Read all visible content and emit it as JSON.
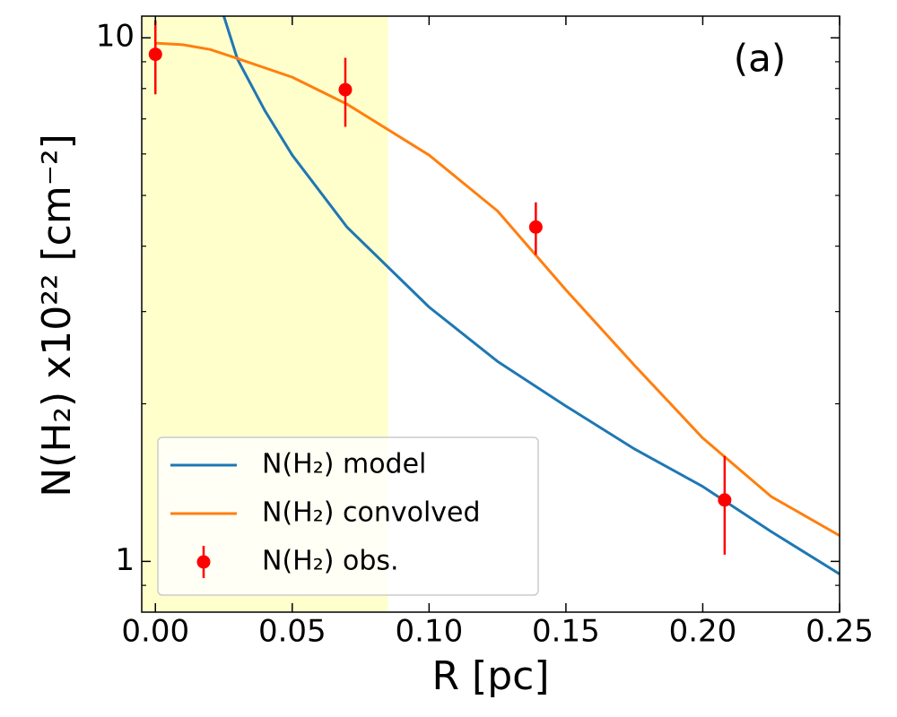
{
  "chart_data": {
    "type": "line",
    "xlabel": "R [pc]",
    "ylabel": "N(H₂) x10²² [cm⁻²]",
    "annotation": "(a)",
    "xlim": [
      -0.005,
      0.25
    ],
    "ylim": [
      0.8,
      11
    ],
    "log_y": true,
    "xticks": [
      {
        "value": 0,
        "label": "0.00"
      },
      {
        "value": 0.05,
        "label": "0.05"
      },
      {
        "value": 0.1,
        "label": "0.10"
      },
      {
        "value": 0.15,
        "label": "0.15"
      },
      {
        "value": 0.2,
        "label": "0.20"
      },
      {
        "value": 0.25,
        "label": "0.25"
      }
    ],
    "yticks": [
      1,
      10
    ],
    "yminorticks": [
      0.9,
      2,
      3,
      4,
      5,
      6,
      7,
      8,
      9
    ],
    "shaded_x": [
      -0.005,
      0.085
    ],
    "shade_color": "#ffffcc",
    "legend": "lower left",
    "series": [
      {
        "name": "N(H₂) model",
        "color": "#1f77b4",
        "x": [
          0.025,
          0.03,
          0.04,
          0.05,
          0.07,
          0.1,
          0.125,
          0.15,
          0.175,
          0.2,
          0.225,
          0.25
        ],
        "values": [
          11,
          9.1,
          7.26,
          5.97,
          4.35,
          3.06,
          2.41,
          1.98,
          1.64,
          1.39,
          1.14,
          0.946
        ]
      },
      {
        "name": "N(H₂) convolved",
        "color": "#ff7f0e",
        "x": [
          0,
          0.01,
          0.02,
          0.03,
          0.05,
          0.07,
          0.1,
          0.125,
          0.15,
          0.175,
          0.2,
          0.225,
          0.25
        ],
        "values": [
          9.77,
          9.7,
          9.5,
          9.13,
          8.41,
          7.47,
          5.97,
          4.67,
          3.3,
          2.37,
          1.72,
          1.33,
          1.12
        ]
      },
      {
        "name": "N(H₂) obs.",
        "color": "#ff0000",
        "kind": "errorbar",
        "x": [
          0,
          0.0694,
          0.139,
          0.208
        ],
        "values": [
          9.3,
          7.96,
          4.35,
          1.31
        ],
        "errors": [
          1.5,
          1.2,
          0.5,
          0.28
        ]
      }
    ]
  }
}
